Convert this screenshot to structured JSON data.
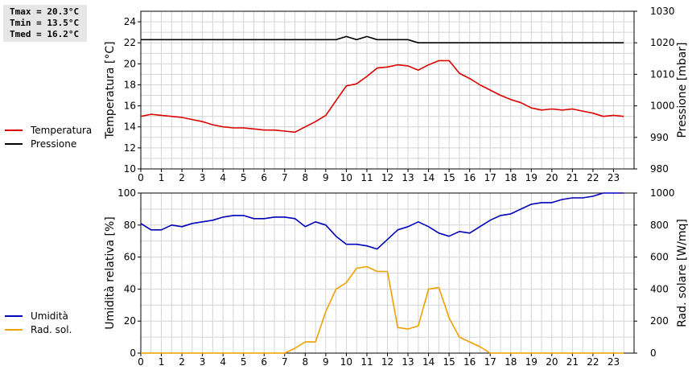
{
  "stats": {
    "tmax": "Tmax = 20.3°C",
    "tmin": "Tmin = 13.5°C",
    "tmed": "Tmed = 16.2°C"
  },
  "colors": {
    "temperature": "#dd0000",
    "pressure": "#000000",
    "humidity": "#0000bb",
    "solar": "#f0a000",
    "grid": "#d4d4d4"
  },
  "legend": {
    "top": [
      {
        "label": "Temperatura",
        "color": "#dd0000"
      },
      {
        "label": "Pressione",
        "color": "#000000"
      }
    ],
    "bottom": [
      {
        "label": "Umidità",
        "color": "#0000bb"
      },
      {
        "label": "Rad. sol.",
        "color": "#f0a000"
      }
    ]
  },
  "chart_data": [
    {
      "type": "line",
      "xlabel": "",
      "xlim": [
        0,
        24
      ],
      "xticks": [
        "0",
        "1",
        "2",
        "3",
        "4",
        "5",
        "6",
        "7",
        "8",
        "9",
        "10",
        "11",
        "12",
        "13",
        "14",
        "15",
        "16",
        "17",
        "18",
        "19",
        "20",
        "21",
        "22",
        "23"
      ],
      "ylabel": "Temperatura [°C]",
      "ylim": [
        10,
        25
      ],
      "yticks": [
        10,
        12,
        14,
        16,
        18,
        20,
        22,
        24
      ],
      "y2label": "Pressione [mbar]",
      "y2lim": [
        980,
        1030
      ],
      "y2ticks": [
        980,
        990,
        1000,
        1010,
        1020,
        1030
      ],
      "grid": true,
      "series": [
        {
          "name": "Temperatura",
          "axis": "left",
          "color": "#dd0000",
          "x": [
            0,
            0.5,
            1,
            1.5,
            2,
            2.5,
            3,
            3.5,
            4,
            4.5,
            5,
            5.5,
            6,
            6.5,
            7,
            7.5,
            8,
            8.5,
            9,
            9.5,
            10,
            10.5,
            11,
            11.5,
            12,
            12.5,
            13,
            13.5,
            14,
            14.5,
            15,
            15.5,
            16,
            16.5,
            17,
            17.5,
            18,
            18.5,
            19,
            19.5,
            20,
            20.5,
            21,
            21.5,
            22,
            22.5,
            23,
            23.5
          ],
          "values": [
            15.0,
            15.2,
            15.1,
            15.0,
            14.9,
            14.7,
            14.5,
            14.2,
            14.0,
            13.9,
            13.9,
            13.8,
            13.7,
            13.7,
            13.6,
            13.5,
            14.0,
            14.5,
            15.1,
            16.5,
            17.9,
            18.1,
            18.8,
            19.6,
            19.7,
            19.9,
            19.8,
            19.4,
            19.9,
            20.3,
            20.3,
            19.1,
            18.6,
            18.0,
            17.5,
            17.0,
            16.6,
            16.3,
            15.8,
            15.6,
            15.7,
            15.6,
            15.7,
            15.5,
            15.3,
            15.0,
            15.1,
            15.0
          ]
        },
        {
          "name": "Pressione",
          "axis": "right",
          "color": "#000000",
          "x": [
            0,
            0.5,
            1,
            1.5,
            2,
            2.5,
            3,
            3.5,
            4,
            4.5,
            5,
            5.5,
            6,
            6.5,
            7,
            7.5,
            8,
            8.5,
            9,
            9.5,
            10,
            10.5,
            11,
            11.5,
            12,
            12.5,
            13,
            13.5,
            14,
            14.5,
            15,
            15.5,
            16,
            16.5,
            17,
            17.5,
            18,
            18.5,
            19,
            19.5,
            20,
            20.5,
            21,
            21.5,
            22,
            22.5,
            23,
            23.5
          ],
          "values": [
            1021,
            1021,
            1021,
            1021,
            1021,
            1021,
            1021,
            1021,
            1021,
            1021,
            1021,
            1021,
            1021,
            1021,
            1021,
            1021,
            1021,
            1021,
            1021,
            1021,
            1022,
            1021,
            1022,
            1021,
            1021,
            1021,
            1021,
            1020,
            1020,
            1020,
            1020,
            1020,
            1020,
            1020,
            1020,
            1020,
            1020,
            1020,
            1020,
            1020,
            1020,
            1020,
            1020,
            1020,
            1020,
            1020,
            1020,
            1020
          ]
        }
      ]
    },
    {
      "type": "line",
      "xlabel": "",
      "xlim": [
        0,
        24
      ],
      "xticks": [
        "0",
        "1",
        "2",
        "3",
        "4",
        "5",
        "6",
        "7",
        "8",
        "9",
        "10",
        "11",
        "12",
        "13",
        "14",
        "15",
        "16",
        "17",
        "18",
        "19",
        "20",
        "21",
        "22",
        "23"
      ],
      "ylabel": "Umidità relativa [%]",
      "ylim": [
        0,
        100
      ],
      "yticks": [
        0,
        20,
        40,
        60,
        80,
        100
      ],
      "y2label": "Rad. solare [W/mq]",
      "y2lim": [
        0,
        1000
      ],
      "y2ticks": [
        0,
        200,
        400,
        600,
        800,
        1000
      ],
      "grid": true,
      "series": [
        {
          "name": "Umidità",
          "axis": "left",
          "color": "#0000bb",
          "x": [
            0,
            0.5,
            1,
            1.5,
            2,
            2.5,
            3,
            3.5,
            4,
            4.5,
            5,
            5.5,
            6,
            6.5,
            7,
            7.5,
            8,
            8.5,
            9,
            9.5,
            10,
            10.5,
            11,
            11.5,
            12,
            12.5,
            13,
            13.5,
            14,
            14.5,
            15,
            15.5,
            16,
            16.5,
            17,
            17.5,
            18,
            18.5,
            19,
            19.5,
            20,
            20.5,
            21,
            21.5,
            22,
            22.5,
            23,
            23.5
          ],
          "values": [
            81,
            77,
            77,
            80,
            79,
            81,
            82,
            83,
            85,
            86,
            86,
            84,
            84,
            85,
            85,
            84,
            79,
            82,
            80,
            73,
            68,
            68,
            67,
            65,
            71,
            77,
            79,
            82,
            79,
            75,
            73,
            76,
            75,
            79,
            83,
            86,
            87,
            90,
            93,
            94,
            94,
            96,
            97,
            97,
            98,
            100,
            100,
            100
          ]
        },
        {
          "name": "Rad. sol.",
          "axis": "right",
          "color": "#f0a000",
          "x": [
            0,
            0.5,
            1,
            1.5,
            2,
            2.5,
            3,
            3.5,
            4,
            4.5,
            5,
            5.5,
            6,
            6.5,
            7,
            7.5,
            8,
            8.5,
            9,
            9.5,
            10,
            10.5,
            11,
            11.5,
            12,
            12.5,
            13,
            13.5,
            14,
            14.5,
            15,
            15.5,
            16,
            16.5,
            17,
            17.5,
            18,
            18.5,
            19,
            19.5,
            20,
            20.5,
            21,
            21.5,
            22,
            22.5,
            23,
            23.5
          ],
          "values": [
            0,
            0,
            0,
            0,
            0,
            0,
            0,
            0,
            0,
            0,
            0,
            0,
            0,
            0,
            0,
            30,
            70,
            70,
            260,
            400,
            440,
            530,
            540,
            510,
            510,
            160,
            150,
            170,
            400,
            410,
            220,
            100,
            70,
            40,
            0,
            0,
            0,
            0,
            0,
            0,
            0,
            0,
            0,
            0,
            0,
            0,
            0,
            0
          ]
        }
      ]
    }
  ]
}
